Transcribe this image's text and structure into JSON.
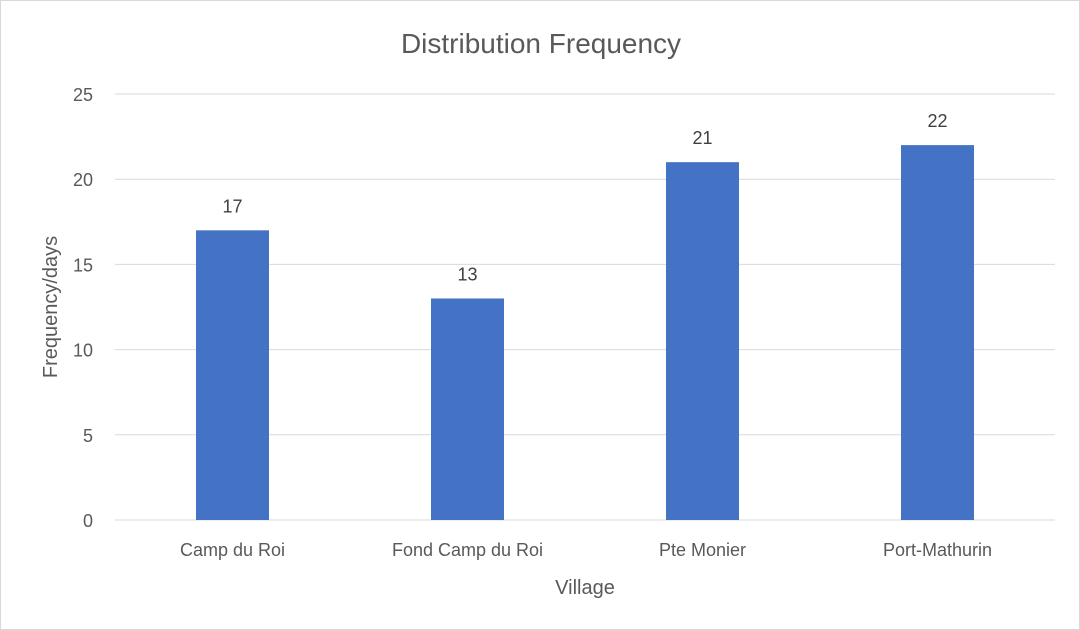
{
  "chart_data": {
    "type": "bar",
    "title": "Distribution Frequency",
    "xlabel": "Village",
    "ylabel": "Frequency/days",
    "categories": [
      "Camp du Roi",
      "Fond Camp du Roi",
      "Pte Monier",
      "Port-Mathurin"
    ],
    "values": [
      17,
      13,
      21,
      22
    ],
    "data_labels": [
      "17",
      "13",
      "21",
      "22"
    ],
    "ylim": [
      0,
      25
    ],
    "yticks": [
      0,
      5,
      10,
      15,
      20,
      25
    ],
    "grid": true,
    "legend": "none",
    "colors": {
      "bar": "#4472C4",
      "grid": "#d9d9d9",
      "text": "#595959",
      "label": "#404040"
    }
  }
}
